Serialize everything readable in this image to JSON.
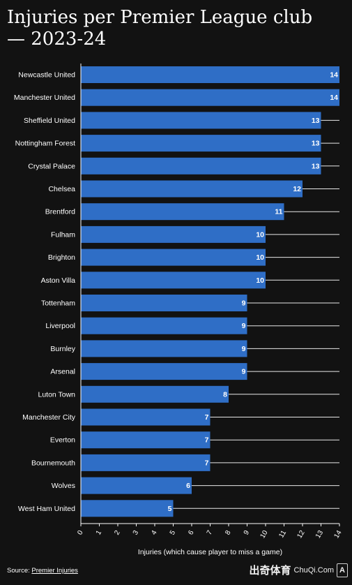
{
  "header": {
    "title": "Injuries per Premier League club — 2023-24"
  },
  "chart_data": {
    "type": "bar",
    "orientation": "horizontal",
    "categories": [
      "Newcastle United",
      "Manchester United",
      "Sheffield United",
      "Nottingham Forest",
      "Crystal Palace",
      "Chelsea",
      "Brentford",
      "Fulham",
      "Brighton",
      "Aston Villa",
      "Tottenham",
      "Liverpool",
      "Burnley",
      "Arsenal",
      "Luton Town",
      "Manchester City",
      "Everton",
      "Bournemouth",
      "Wolves",
      "West Ham United"
    ],
    "values": [
      14,
      14,
      13,
      13,
      13,
      12,
      11,
      10,
      10,
      10,
      9,
      9,
      9,
      9,
      8,
      7,
      7,
      7,
      6,
      5
    ],
    "xlabel": "Injuries (which cause player to miss a game)",
    "ylabel": "",
    "xlim": [
      0,
      14
    ],
    "xticks": [
      0,
      1,
      2,
      3,
      4,
      5,
      6,
      7,
      8,
      9,
      10,
      11,
      12,
      13,
      14
    ],
    "bar_color": "#2f6ec6",
    "grid": true
  },
  "footer": {
    "source_label": "Source:",
    "source_link": "Premier Injuries"
  },
  "watermark": {
    "text": "出奇体育",
    "small": "ChuQi.Com",
    "mark": "A"
  }
}
